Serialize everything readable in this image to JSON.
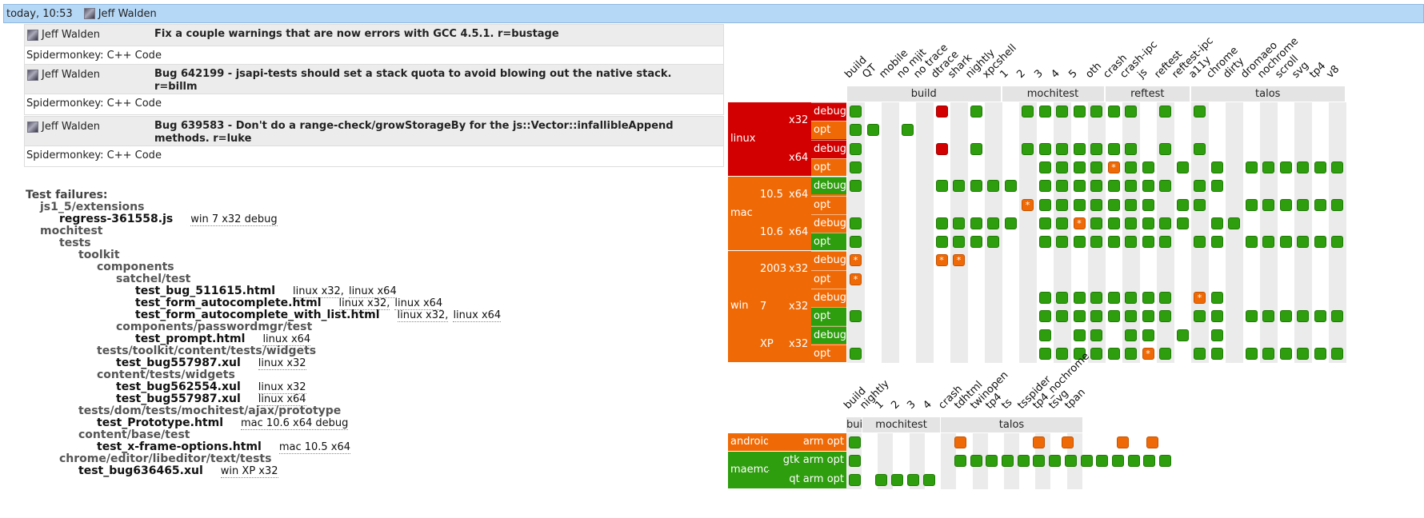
{
  "topbar": {
    "date": "today, 10:53",
    "user": "Jeff Walden"
  },
  "pushes": [
    {
      "author": "Jeff Walden",
      "message": "Fix a couple warnings that are now errors with GCC 4.5.1.  r=bustage",
      "repo": "Spidermonkey: C++ Code"
    },
    {
      "author": "Jeff Walden",
      "message": "Bug 642199 - jsapi-tests should set a stack quota to avoid blowing out the native stack.  r=billm",
      "repo": "Spidermonkey: C++ Code"
    },
    {
      "author": "Jeff Walden",
      "message": "Bug 639583 - Don't do a range-check/growStorageBy for the js::Vector::infallibleAppend methods.  r=luke",
      "repo": "Spidermonkey: C++ Code"
    }
  ],
  "failures": {
    "title": "Test failures:",
    "lines": [
      {
        "indent": 1,
        "text": "js1_5/extensions",
        "kind": "dir"
      },
      {
        "indent": 2,
        "text": "regress-361558.js",
        "kind": "file",
        "plats": [
          "win 7 x32 debug"
        ]
      },
      {
        "indent": 1,
        "text": "mochitest",
        "kind": "dir"
      },
      {
        "indent": 2,
        "text": "tests",
        "kind": "dir"
      },
      {
        "indent": 3,
        "text": "toolkit",
        "kind": "dir"
      },
      {
        "indent": 4,
        "text": "components",
        "kind": "dir"
      },
      {
        "indent": 5,
        "text": "satchel/test",
        "kind": "dir"
      },
      {
        "indent": 6,
        "text": "test_bug_511615.html",
        "kind": "file",
        "plats": [
          "linux x32,",
          "linux x64"
        ]
      },
      {
        "indent": 6,
        "text": "test_form_autocomplete.html",
        "kind": "file",
        "plats": [
          "linux x32,",
          "linux x64"
        ]
      },
      {
        "indent": 6,
        "text": "test_form_autocomplete_with_list.html",
        "kind": "file",
        "plats": [
          "linux x32,",
          "linux x64"
        ]
      },
      {
        "indent": 5,
        "text": "components/passwordmgr/test",
        "kind": "dir"
      },
      {
        "indent": 6,
        "text": "test_prompt.html",
        "kind": "file",
        "plats": [
          "linux x64"
        ]
      },
      {
        "indent": 4,
        "text": "tests/toolkit/content/tests/widgets",
        "kind": "dir"
      },
      {
        "indent": 5,
        "text": "test_bug557987.xul",
        "kind": "file",
        "plats": [
          "linux x32"
        ]
      },
      {
        "indent": 4,
        "text": "content/tests/widgets",
        "kind": "dir"
      },
      {
        "indent": 5,
        "text": "test_bug562554.xul",
        "kind": "file",
        "plats": [
          "linux x32"
        ]
      },
      {
        "indent": 5,
        "text": "test_bug557987.xul",
        "kind": "file",
        "plats": [
          "linux x64"
        ]
      },
      {
        "indent": 3,
        "text": "tests/dom/tests/mochitest/ajax/prototype",
        "kind": "dir"
      },
      {
        "indent": 4,
        "text": "test_Prototype.html",
        "kind": "file",
        "plats": [
          "mac 10.6 x64 debug"
        ]
      },
      {
        "indent": 3,
        "text": "content/base/test",
        "kind": "dir"
      },
      {
        "indent": 4,
        "text": "test_x-frame-options.html",
        "kind": "file",
        "plats": [
          "mac 10.5 x64"
        ]
      },
      {
        "indent": 2,
        "text": "chrome/editor/libeditor/text/tests",
        "kind": "dir"
      },
      {
        "indent": 3,
        "text": "test_bug636465.xul",
        "kind": "file",
        "plats": [
          "win XP x32"
        ]
      }
    ]
  },
  "colors": {
    "green": "#2e9d0e",
    "red": "#d20000",
    "orange": "#ef6a06",
    "linux": "#d20000",
    "mac": "#ef6a06",
    "win": "#ef6a06",
    "android": "#ef6a06",
    "maemo": "#2e9d0e",
    "header": "#b6d8f7"
  },
  "desktop": {
    "columns": [
      "build",
      "QT",
      "mobile",
      "no mjit",
      "no trace",
      "dtrace",
      "shark",
      "nightly",
      "xpcshell",
      "1",
      "2",
      "3",
      "4",
      "5",
      "oth",
      "crash",
      "crash-ipc",
      "js",
      "reftest",
      "reftest-ipc",
      "a11y",
      "chrome",
      "dirty",
      "dromaeo",
      "nochrome",
      "scroll",
      "svg",
      "tp4",
      "v8"
    ],
    "groups": [
      {
        "label": "build",
        "start": 0,
        "end": 8
      },
      {
        "label": "mochitest",
        "start": 9,
        "end": 14
      },
      {
        "label": "reftest",
        "start": 15,
        "end": 19
      },
      {
        "label": "talos",
        "start": 20,
        "end": 28
      }
    ],
    "platforms": [
      {
        "os": "linux",
        "status": "red",
        "versions": [
          {
            "name": "",
            "arch": "x32",
            "rows": [
              {
                "type": "debug",
                "status": "red"
              },
              {
                "type": "opt",
                "status": "orange"
              }
            ]
          },
          {
            "name": "",
            "arch": "x64",
            "rows": [
              {
                "type": "debug",
                "status": "red"
              },
              {
                "type": "opt",
                "status": "orange"
              }
            ]
          }
        ]
      },
      {
        "os": "mac",
        "status": "orange",
        "versions": [
          {
            "name": "10.5",
            "arch": "x64",
            "rows": [
              {
                "type": "debug",
                "status": "green"
              },
              {
                "type": "opt",
                "status": "orange"
              }
            ]
          },
          {
            "name": "10.6",
            "arch": "x64",
            "rows": [
              {
                "type": "debug",
                "status": "orange"
              },
              {
                "type": "opt",
                "status": "green"
              }
            ]
          }
        ]
      },
      {
        "os": "win",
        "status": "orange",
        "versions": [
          {
            "name": "2003",
            "arch": "x32",
            "rows": [
              {
                "type": "debug",
                "status": "orange"
              },
              {
                "type": "opt",
                "status": "orange"
              }
            ]
          },
          {
            "name": "7",
            "arch": "x32",
            "rows": [
              {
                "type": "debug",
                "status": "orange"
              },
              {
                "type": "opt",
                "status": "green"
              }
            ]
          },
          {
            "name": "XP",
            "arch": "x32",
            "rows": [
              {
                "type": "debug",
                "status": "green"
              },
              {
                "type": "opt",
                "status": "orange"
              }
            ]
          }
        ]
      }
    ],
    "cells": [
      "g....r.g..ggggggg.g.g.........",
      "gg.g.............................",
      "g....r.g..ggggggg.g.g.........",
      "g..........ggggogg.g.g.ggggggggg",
      "g....ggggg.gggggggg.gg........",
      "..........oggggggg.gg..ggggggg",
      "g....ggggg.ggogggggg.gg........",
      "g....gggg..gggggggg.gg.ggggggg",
      "o....oo........................",
      "o..............................",
      "...........gggggggg.og.........",
      "g..........gggggggg.gg.ggggggggg",
      "...........g.gg.gg.g.g.........",
      "g..........ggggggog.gg.ggggggggg"
    ]
  },
  "mobile": {
    "columns": [
      "build",
      "nightly",
      "1",
      "2",
      "3",
      "4",
      "crash",
      "tdhtml",
      "twinopen",
      "tp4",
      "ts",
      "tsspider",
      "tp4_nochrome",
      "tsvg",
      "tpan"
    ],
    "groups": [
      {
        "label": "build",
        "start": 0,
        "end": 0
      },
      {
        "label": "mochitest",
        "start": 1,
        "end": 5
      },
      {
        "label": "talos",
        "start": 6,
        "end": 14
      }
    ],
    "platforms": [
      {
        "os": "android",
        "status": "orange",
        "rows": [
          {
            "type": "arm opt",
            "status": "orange"
          }
        ]
      },
      {
        "os": "maemo",
        "status": "green",
        "rows": [
          {
            "type": "gtk arm opt",
            "status": "green"
          },
          {
            "type": "qt   arm opt",
            "status": "green"
          }
        ]
      }
    ]
  }
}
